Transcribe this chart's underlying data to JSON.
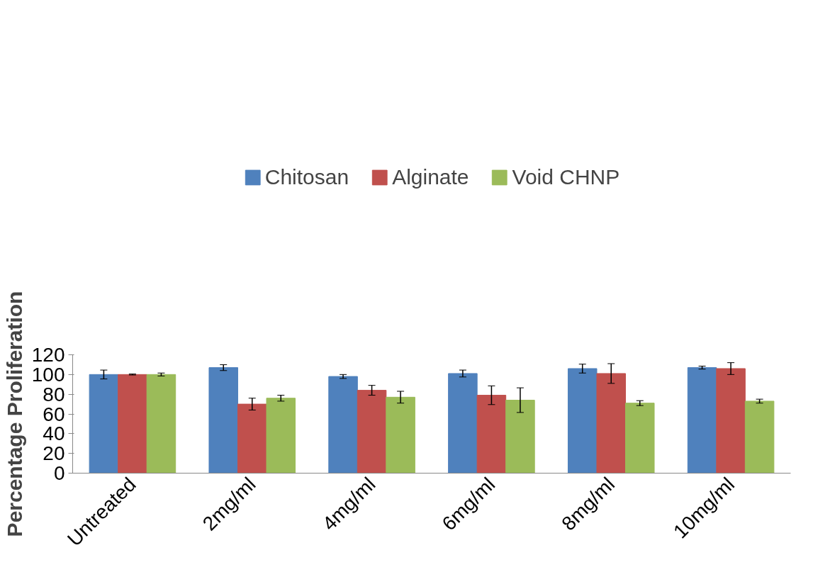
{
  "chart_data": {
    "type": "bar",
    "ylabel": "Percentage Proliferation",
    "categories": [
      "Untreated",
      "2mg/ml",
      "4mg/ml",
      "6mg/ml",
      "8mg/ml",
      "10mg/ml"
    ],
    "series": [
      {
        "name": "Chitosan",
        "color": "#4f81bd",
        "values": [
          100,
          107,
          98,
          101,
          106,
          107
        ],
        "errors": [
          4.5,
          3,
          2,
          3.5,
          4.5,
          1.5
        ]
      },
      {
        "name": "Alginate",
        "color": "#c0504d",
        "values": [
          100,
          70,
          84,
          79,
          101,
          106
        ],
        "errors": [
          0.5,
          6,
          5,
          9.5,
          10,
          6
        ]
      },
      {
        "name": "Void CHNP",
        "color": "#9bbb59",
        "values": [
          100,
          76,
          77,
          74,
          71,
          73
        ],
        "errors": [
          1.5,
          3,
          6,
          12.5,
          2.5,
          2
        ]
      }
    ],
    "ylim": [
      0,
      120
    ],
    "yticks": [
      0,
      20,
      40,
      60,
      80,
      100,
      120
    ],
    "grid": false,
    "legend": "top"
  }
}
